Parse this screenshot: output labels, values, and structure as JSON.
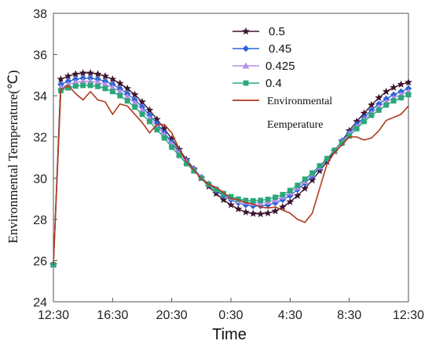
{
  "chart_data": {
    "type": "line",
    "xlabel": "Time",
    "ylabel": "Environmental Temperature(℃)",
    "x_ticks": [
      "12:30",
      "16:30",
      "20:30",
      "0:30",
      "4:30",
      "8:30",
      "12:30"
    ],
    "x_range_hours": [
      0,
      24
    ],
    "ylim": [
      24,
      38
    ],
    "y_ticks": [
      24,
      26,
      28,
      30,
      32,
      34,
      36,
      38
    ],
    "grid": false,
    "legend_position": "top-right",
    "series": [
      {
        "name": "0.5",
        "color": "#3d1530",
        "marker": "star",
        "x": [
          0,
          0.5,
          1,
          1.5,
          2,
          2.5,
          3,
          3.5,
          4,
          4.5,
          5,
          5.5,
          6,
          6.5,
          7,
          7.5,
          8,
          8.5,
          9,
          9.5,
          10,
          10.5,
          11,
          11.5,
          12,
          12.5,
          13,
          13.5,
          14,
          14.5,
          15,
          15.5,
          16,
          16.5,
          17,
          17.5,
          18,
          18.5,
          19,
          19.5,
          20,
          20.5,
          21,
          21.5,
          22,
          22.5,
          23,
          23.5,
          24
        ],
        "y": [
          25.8,
          34.8,
          34.95,
          35.05,
          35.1,
          35.1,
          35.05,
          34.95,
          34.8,
          34.6,
          34.35,
          34.05,
          33.7,
          33.3,
          32.85,
          32.4,
          31.9,
          31.4,
          30.9,
          30.45,
          30.0,
          29.6,
          29.25,
          28.95,
          28.7,
          28.5,
          28.35,
          28.28,
          28.26,
          28.3,
          28.4,
          28.6,
          28.85,
          29.15,
          29.5,
          29.9,
          30.35,
          30.8,
          31.3,
          31.8,
          32.3,
          32.75,
          33.15,
          33.55,
          33.9,
          34.2,
          34.4,
          34.55,
          34.65
        ]
      },
      {
        "name": "0.45",
        "color": "#2a63d6",
        "marker": "diamond",
        "x": [
          0,
          0.5,
          1,
          1.5,
          2,
          2.5,
          3,
          3.5,
          4,
          4.5,
          5,
          5.5,
          6,
          6.5,
          7,
          7.5,
          8,
          8.5,
          9,
          9.5,
          10,
          10.5,
          11,
          11.5,
          12,
          12.5,
          13,
          13.5,
          14,
          14.5,
          15,
          15.5,
          16,
          16.5,
          17,
          17.5,
          18,
          18.5,
          19,
          19.5,
          20,
          20.5,
          21,
          21.5,
          22,
          22.5,
          23,
          23.5,
          24
        ],
        "y": [
          25.8,
          34.55,
          34.7,
          34.8,
          34.85,
          34.85,
          34.8,
          34.7,
          34.55,
          34.35,
          34.1,
          33.8,
          33.45,
          33.05,
          32.65,
          32.2,
          31.75,
          31.3,
          30.85,
          30.45,
          30.05,
          29.7,
          29.4,
          29.15,
          28.95,
          28.8,
          28.7,
          28.65,
          28.65,
          28.7,
          28.8,
          28.95,
          29.15,
          29.45,
          29.75,
          30.1,
          30.5,
          30.9,
          31.35,
          31.8,
          32.2,
          32.6,
          32.95,
          33.3,
          33.6,
          33.85,
          34.05,
          34.2,
          34.35
        ]
      },
      {
        "name": "0.425",
        "color": "#b58ee6",
        "marker": "triangle",
        "x": [
          0,
          0.5,
          1,
          1.5,
          2,
          2.5,
          3,
          3.5,
          4,
          4.5,
          5,
          5.5,
          6,
          6.5,
          7,
          7.5,
          8,
          8.5,
          9,
          9.5,
          10,
          10.5,
          11,
          11.5,
          12,
          12.5,
          13,
          13.5,
          14,
          14.5,
          15,
          15.5,
          16,
          16.5,
          17,
          17.5,
          18,
          18.5,
          19,
          19.5,
          20,
          20.5,
          21,
          21.5,
          22,
          22.5,
          23,
          23.5,
          24
        ],
        "y": [
          25.8,
          34.4,
          34.55,
          34.65,
          34.7,
          34.7,
          34.65,
          34.55,
          34.4,
          34.2,
          33.95,
          33.65,
          33.3,
          32.9,
          32.5,
          32.1,
          31.65,
          31.2,
          30.8,
          30.4,
          30.05,
          29.75,
          29.45,
          29.25,
          29.05,
          28.9,
          28.85,
          28.8,
          28.8,
          28.85,
          28.95,
          29.1,
          29.3,
          29.55,
          29.85,
          30.2,
          30.55,
          30.95,
          31.35,
          31.75,
          32.15,
          32.5,
          32.85,
          33.15,
          33.45,
          33.7,
          33.9,
          34.05,
          34.2
        ]
      },
      {
        "name": "0.4",
        "color": "#2aa87a",
        "marker": "square",
        "x": [
          0,
          0.5,
          1,
          1.5,
          2,
          2.5,
          3,
          3.5,
          4,
          4.5,
          5,
          5.5,
          6,
          6.5,
          7,
          7.5,
          8,
          8.5,
          9,
          9.5,
          10,
          10.5,
          11,
          11.5,
          12,
          12.5,
          13,
          13.5,
          14,
          14.5,
          15,
          15.5,
          16,
          16.5,
          17,
          17.5,
          18,
          18.5,
          19,
          19.5,
          20,
          20.5,
          21,
          21.5,
          22,
          22.5,
          23,
          23.5,
          24
        ],
        "y": [
          25.8,
          34.25,
          34.38,
          34.47,
          34.5,
          34.5,
          34.45,
          34.35,
          34.2,
          34.0,
          33.75,
          33.45,
          33.1,
          32.75,
          32.35,
          31.95,
          31.5,
          31.1,
          30.7,
          30.35,
          30.0,
          29.7,
          29.45,
          29.25,
          29.1,
          28.98,
          28.92,
          28.9,
          28.92,
          28.97,
          29.07,
          29.2,
          29.4,
          29.65,
          29.95,
          30.25,
          30.6,
          30.95,
          31.35,
          31.7,
          32.05,
          32.4,
          32.75,
          33.05,
          33.3,
          33.55,
          33.75,
          33.9,
          34.05
        ]
      },
      {
        "name": "Environmental Eemperature",
        "color": "#b03a1c",
        "marker": "none",
        "x": [
          0,
          0.5,
          1,
          1.5,
          2,
          2.5,
          3,
          3.5,
          4,
          4.5,
          5,
          5.5,
          6,
          6.5,
          7,
          7.5,
          8,
          8.5,
          9,
          9.5,
          10,
          10.5,
          11,
          11.5,
          12,
          12.5,
          13,
          13.5,
          14,
          14.5,
          15,
          15.5,
          16,
          16.5,
          17,
          17.5,
          18,
          18.5,
          19,
          19.5,
          20,
          20.5,
          21,
          21.5,
          22,
          22.5,
          23,
          23.5,
          24
        ],
        "y": [
          25.8,
          34.3,
          34.5,
          34.1,
          33.8,
          34.2,
          33.8,
          33.7,
          33.1,
          33.6,
          33.5,
          33.1,
          32.7,
          32.2,
          32.6,
          32.6,
          32.2,
          31.4,
          30.8,
          30.4,
          29.95,
          29.7,
          29.55,
          29.3,
          29.0,
          28.95,
          28.8,
          28.75,
          28.6,
          28.55,
          28.6,
          28.45,
          28.3,
          28.0,
          27.85,
          28.3,
          29.5,
          30.7,
          31.25,
          31.6,
          32.0,
          32.0,
          31.85,
          31.95,
          32.3,
          32.8,
          32.95,
          33.1,
          33.5
        ]
      }
    ]
  },
  "legend": {
    "entries": [
      "0.5",
      "0.45",
      "0.425",
      "0.4"
    ],
    "env_line1": "Environmental",
    "env_line2": "Eemperature"
  }
}
